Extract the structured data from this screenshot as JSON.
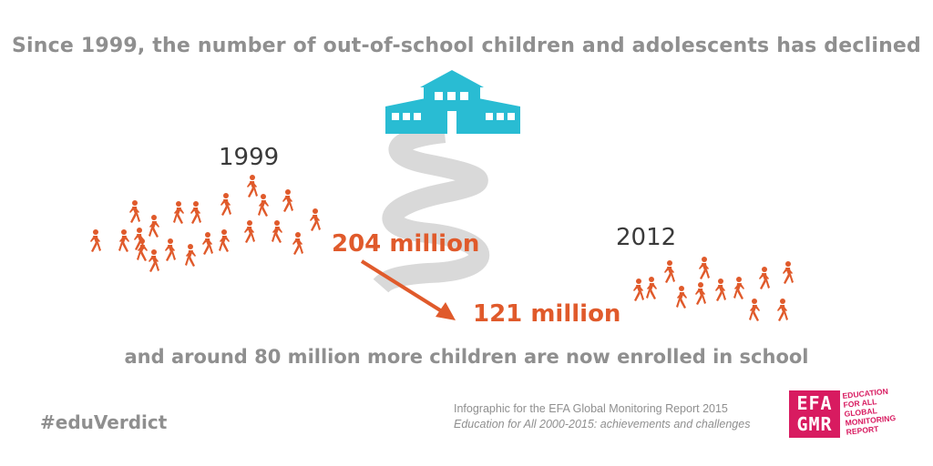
{
  "headline": "Since 1999, the number of out-of-school children and adolescents has declined",
  "subline": "and around 80 million more children are now enrolled in school",
  "years": {
    "start": "1999",
    "end": "2012"
  },
  "figures": {
    "start": "204 million",
    "end": "121 million"
  },
  "hashtag": "#eduVerdict",
  "credit": {
    "line1": "Infographic for the EFA Global Monitoring Report 2015",
    "line2": "Education for All 2000-2015: achievements and challenges"
  },
  "logo": {
    "box_top": "EFA",
    "box_bottom": "GMR",
    "words": [
      "EDUCATION",
      "FOR ALL",
      "GLOBAL",
      "MONITORING",
      "REPORT"
    ]
  },
  "colors": {
    "accent": "#e05a2b",
    "school": "#29bcd3",
    "road": "#d9d9d9",
    "text_gray": "#8f8f8f",
    "brand": "#d81b60"
  },
  "icons": [
    "school-icon",
    "road-icon",
    "walking-child-icon",
    "arrow-icon"
  ]
}
